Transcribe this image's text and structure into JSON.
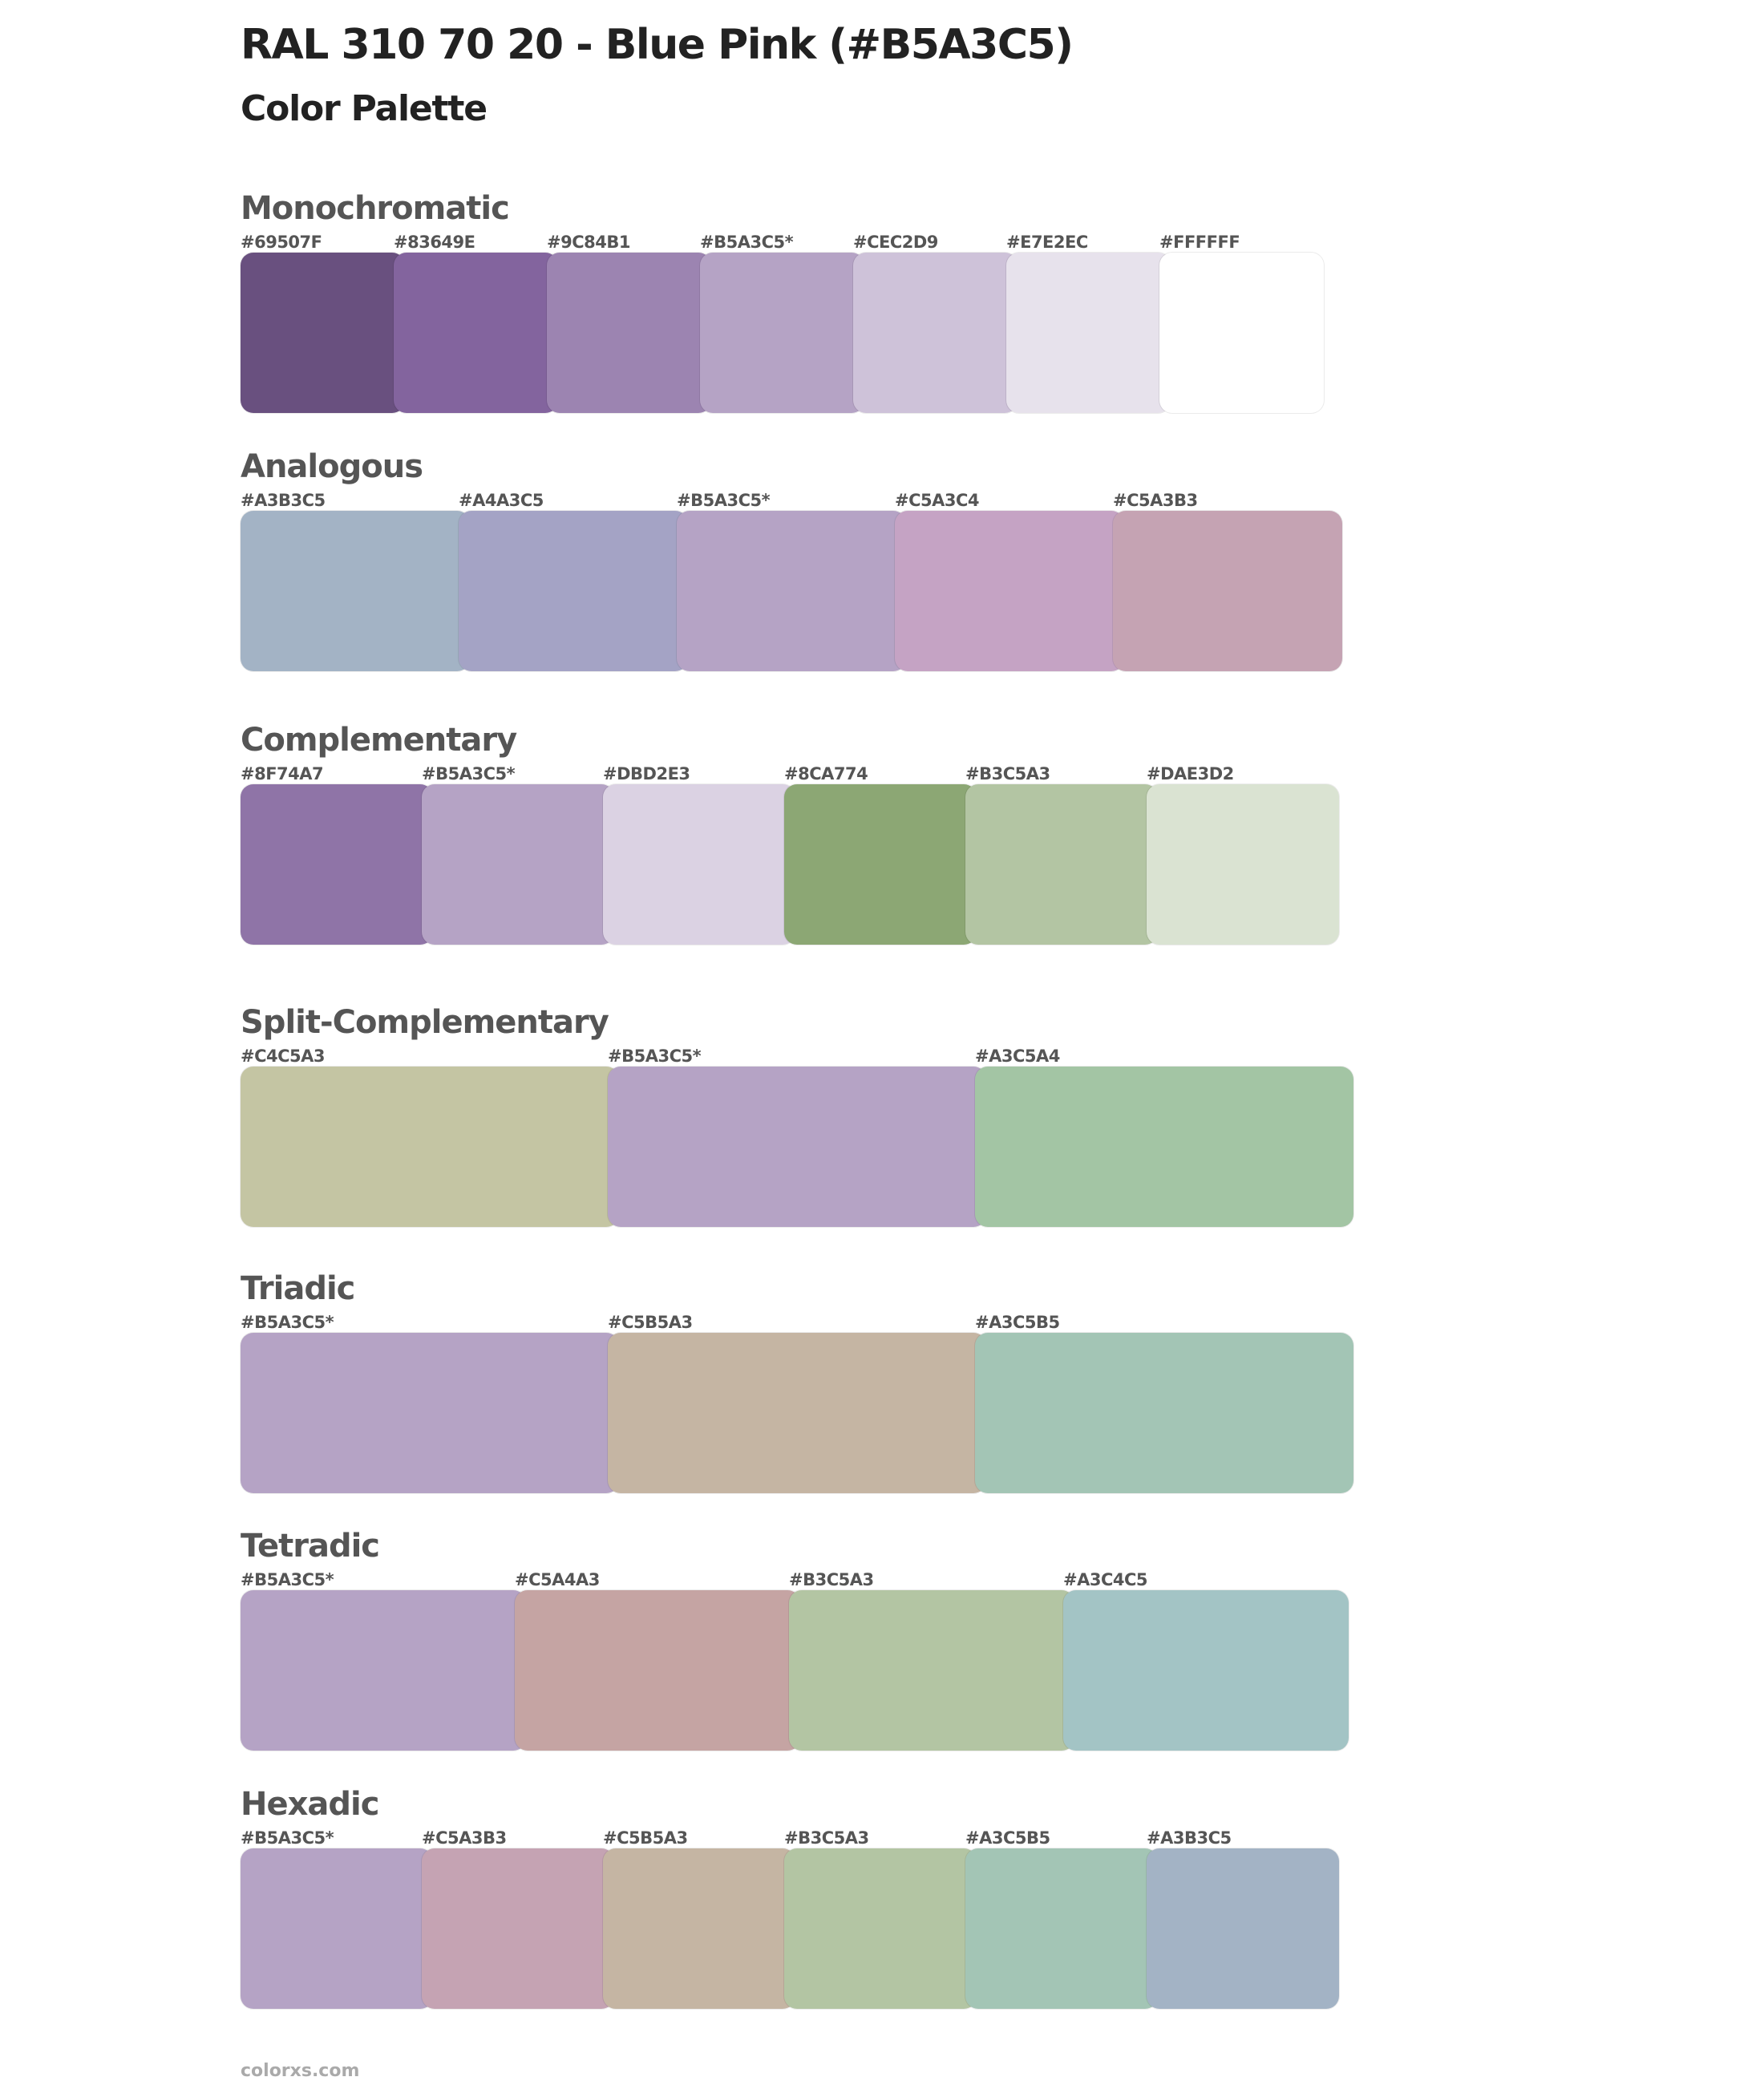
{
  "title": "RAL 310 70 20 - Blue Pink (#B5A3C5)",
  "subtitle": "Color Palette",
  "sections": [
    {
      "name": "Monochromatic",
      "colors": [
        "#69507F",
        "#83649E",
        "#9C84B1",
        "#B5A3C5*",
        "#CEC2D9",
        "#E7E2EC",
        "#FFFFFF"
      ]
    },
    {
      "name": "Analogous",
      "colors": [
        "#A3B3C5",
        "#A4A3C5",
        "#B5A3C5*",
        "#C5A3C4",
        "#C5A3B3"
      ]
    },
    {
      "name": "Complementary",
      "colors": [
        "#8F74A7",
        "#B5A3C5*",
        "#DBD2E3",
        "#8CA774",
        "#B3C5A3",
        "#DAE3D2"
      ]
    },
    {
      "name": "Split-Complementary",
      "colors": [
        "#C4C5A3",
        "#B5A3C5*",
        "#A3C5A4"
      ]
    },
    {
      "name": "Triadic",
      "colors": [
        "#B5A3C5*",
        "#C5B5A3",
        "#A3C5B5"
      ]
    },
    {
      "name": "Tetradic",
      "colors": [
        "#B5A3C5*",
        "#C5A4A3",
        "#B3C5A3",
        "#A3C4C5"
      ]
    },
    {
      "name": "Hexadic",
      "colors": [
        "#B5A3C5*",
        "#C5A3B3",
        "#C5B5A3",
        "#B3C5A3",
        "#A3C5B5",
        "#A3B3C5"
      ]
    }
  ],
  "footer": "colorxs.com"
}
